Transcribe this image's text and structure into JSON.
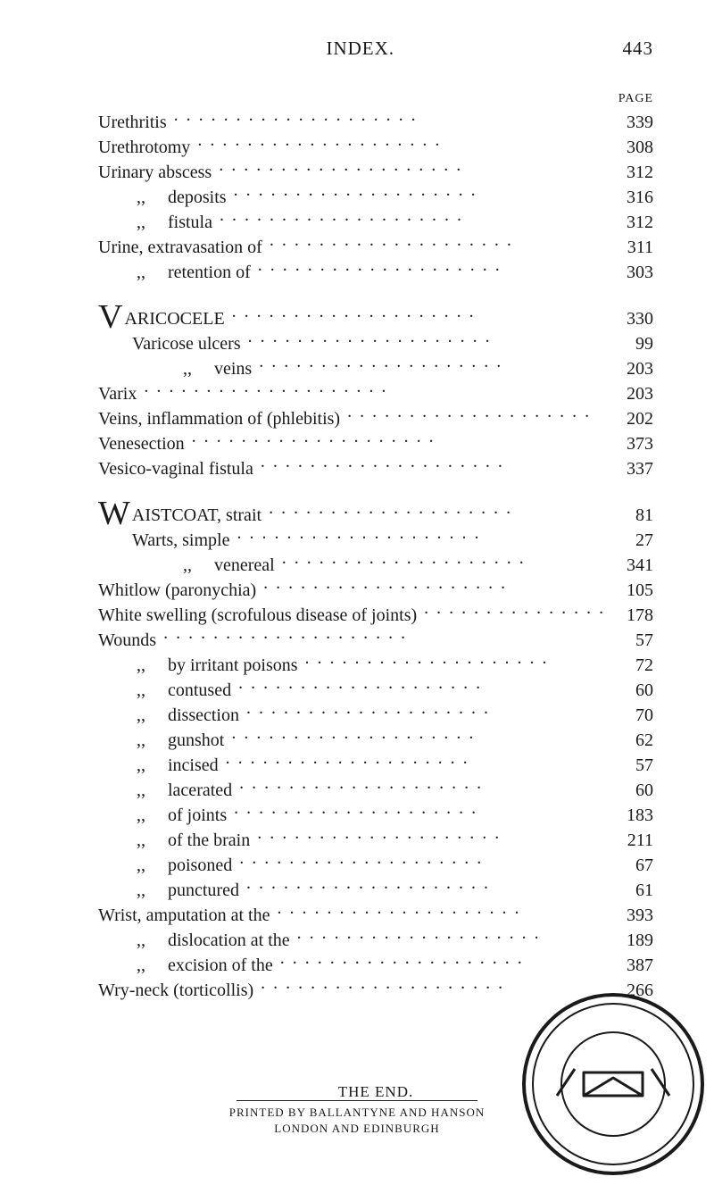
{
  "header": {
    "title": "INDEX.",
    "page_no": "443"
  },
  "page_col_label": "PAGE",
  "blocks": [
    {
      "entries": [
        {
          "indent": 0,
          "label": "Urethritis",
          "page": "339"
        },
        {
          "indent": 0,
          "label": "Urethrotomy",
          "page": "308"
        },
        {
          "indent": 0,
          "label": "Urinary abscess",
          "page": "312"
        },
        {
          "indent": 1,
          "ditto": ",,",
          "label": "deposits",
          "page": "316"
        },
        {
          "indent": 1,
          "ditto": ",,",
          "label": "fistula",
          "page": "312"
        },
        {
          "indent": 0,
          "label": "Urine, extravasation of",
          "page": "311"
        },
        {
          "indent": 1,
          "ditto": ",,",
          "label": "retention of",
          "page": "303"
        }
      ]
    },
    {
      "dropcap": "V",
      "entries": [
        {
          "indent": 0,
          "label": "ARICOCELE",
          "page": "330"
        },
        {
          "indent": 1,
          "label": "Varicose ulcers",
          "page": "99"
        },
        {
          "indent": 2,
          "ditto": ",,",
          "label": "veins",
          "page": "203"
        },
        {
          "indent": 0,
          "label": "Varix",
          "page": "203"
        },
        {
          "indent": 0,
          "label": "Veins, inflammation of (phlebitis)",
          "page": "202"
        },
        {
          "indent": 0,
          "label": "Venesection",
          "page": "373"
        },
        {
          "indent": 0,
          "label": "Vesico-vaginal fistula",
          "page": "337"
        }
      ]
    },
    {
      "dropcap": "W",
      "entries": [
        {
          "indent": 0,
          "label": "AISTCOAT, strait",
          "page": "81"
        },
        {
          "indent": 1,
          "label": "Warts, simple",
          "page": "27"
        },
        {
          "indent": 2,
          "ditto": ",,",
          "label": "venereal",
          "page": "341"
        },
        {
          "indent": 0,
          "label": "Whitlow (paronychia)",
          "page": "105"
        },
        {
          "indent": 0,
          "label": "White swelling (scrofulous disease of joints)",
          "page": "178"
        },
        {
          "indent": 0,
          "label": "Wounds",
          "page": "57"
        },
        {
          "indent": 1,
          "ditto": ",,",
          "label": "by irritant poisons",
          "page": "72"
        },
        {
          "indent": 1,
          "ditto": ",,",
          "label": "contused",
          "page": "60"
        },
        {
          "indent": 1,
          "ditto": ",,",
          "label": "dissection",
          "page": "70"
        },
        {
          "indent": 1,
          "ditto": ",,",
          "label": "gunshot",
          "page": "62"
        },
        {
          "indent": 1,
          "ditto": ",,",
          "label": "incised",
          "page": "57"
        },
        {
          "indent": 1,
          "ditto": ",,",
          "label": "lacerated",
          "page": "60"
        },
        {
          "indent": 1,
          "ditto": ",,",
          "label": "of joints",
          "page": "183"
        },
        {
          "indent": 1,
          "ditto": ",,",
          "label": "of the brain",
          "page": "211"
        },
        {
          "indent": 1,
          "ditto": ",,",
          "label": "poisoned",
          "page": "67"
        },
        {
          "indent": 1,
          "ditto": ",,",
          "label": "punctured",
          "page": "61"
        },
        {
          "indent": 0,
          "label": "Wrist, amputation at the",
          "page": "393"
        },
        {
          "indent": 1,
          "ditto": ",,",
          "label": "dislocation at the",
          "page": "189"
        },
        {
          "indent": 1,
          "ditto": ",,",
          "label": "excision of the",
          "page": "387"
        },
        {
          "indent": 0,
          "label": "Wry-neck (torticollis)",
          "page": "266"
        }
      ]
    }
  ],
  "the_end": "THE END.",
  "imprint": {
    "line1": "PRINTED BY BALLANTYNE AND HANSON",
    "line2": "LONDON AND EDINBURGH"
  },
  "stamp": {
    "outer_stroke": "#1a1a1a",
    "inner_fill": "#ffffff"
  }
}
